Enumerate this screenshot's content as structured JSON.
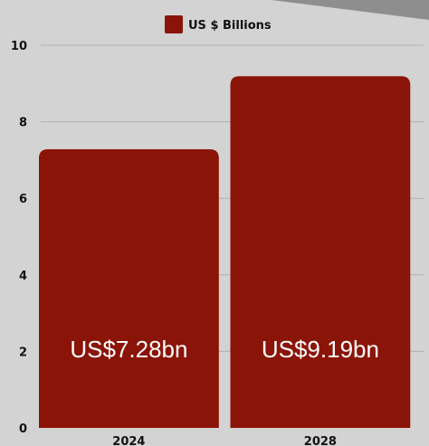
{
  "chart_data": {
    "type": "bar",
    "categories": [
      "2024",
      "2028"
    ],
    "series": [
      {
        "name": "US $ Billions",
        "values": [
          7.28,
          9.19
        ]
      }
    ],
    "data_labels": [
      "US$7.28bn",
      "US$9.19bn"
    ],
    "ylim": [
      0,
      10
    ],
    "yticks": [
      0,
      2,
      4,
      6,
      8,
      10
    ],
    "grid": true,
    "legend_position": "top-center",
    "colors": {
      "bar": "#8b1408",
      "background": "#d3d3d3",
      "corner_accent": "#8e8e8e",
      "grid": "#b0b0b0"
    }
  }
}
